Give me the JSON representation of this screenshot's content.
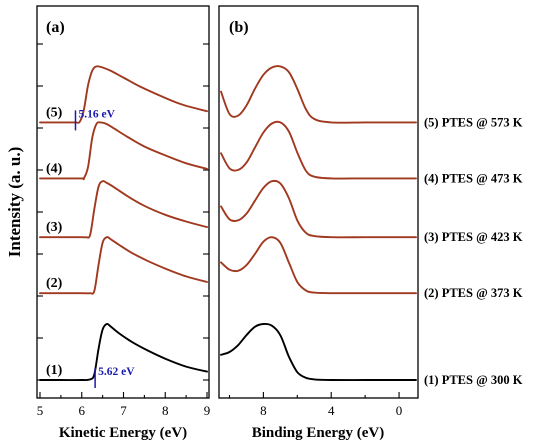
{
  "chart_data": [
    {
      "type": "line",
      "panel": "(a)",
      "xlabel": "Kinetic Energy (eV)",
      "ylabel": "Intensity (a. u.)",
      "xlim": [
        5,
        9
      ],
      "x_ticks": [
        "5",
        "6",
        "7",
        "8",
        "9"
      ],
      "series": [
        {
          "label": "(1)",
          "color": "#000000",
          "offset": 0.0,
          "x": [
            5.0,
            5.5,
            6.0,
            6.2,
            6.3,
            6.4,
            6.5,
            6.6,
            6.7,
            6.9,
            7.2,
            7.6,
            8.0,
            8.5,
            9.0
          ],
          "y": [
            0.0,
            0.0,
            0.0,
            0.01,
            0.1,
            0.55,
            0.9,
            1.0,
            0.95,
            0.83,
            0.68,
            0.52,
            0.38,
            0.24,
            0.15
          ]
        },
        {
          "label": "(2)",
          "color": "#a0391f",
          "offset": 1.55,
          "x": [
            5.0,
            5.5,
            6.0,
            6.2,
            6.3,
            6.4,
            6.5,
            6.6,
            6.7,
            6.9,
            7.2,
            7.6,
            8.0,
            8.5,
            9.0
          ],
          "y": [
            0.0,
            0.0,
            0.0,
            0.0,
            0.04,
            0.5,
            0.9,
            1.0,
            0.96,
            0.86,
            0.72,
            0.57,
            0.44,
            0.3,
            0.2
          ]
        },
        {
          "label": "(3)",
          "color": "#a0391f",
          "offset": 2.55,
          "x": [
            5.0,
            5.5,
            6.0,
            6.1,
            6.2,
            6.3,
            6.4,
            6.5,
            6.6,
            6.8,
            7.1,
            7.5,
            8.0,
            8.5,
            9.0
          ],
          "y": [
            0.0,
            0.0,
            0.0,
            0.0,
            0.04,
            0.5,
            0.9,
            1.0,
            0.97,
            0.88,
            0.73,
            0.56,
            0.4,
            0.28,
            0.18
          ]
        },
        {
          "label": "(4)",
          "color": "#a0391f",
          "offset": 3.6,
          "x": [
            5.0,
            5.5,
            6.0,
            6.05,
            6.15,
            6.25,
            6.35,
            6.45,
            6.6,
            6.8,
            7.1,
            7.5,
            8.0,
            8.5,
            9.0
          ],
          "y": [
            0.0,
            0.0,
            0.0,
            0.0,
            0.2,
            0.72,
            0.97,
            1.0,
            0.97,
            0.88,
            0.74,
            0.57,
            0.41,
            0.27,
            0.17
          ]
        },
        {
          "label": "(5)",
          "color": "#a0391f",
          "offset": 4.6,
          "x": [
            5.0,
            5.5,
            5.85,
            5.95,
            6.05,
            6.15,
            6.25,
            6.35,
            6.5,
            6.7,
            7.0,
            7.4,
            7.9,
            8.4,
            9.0
          ],
          "y": [
            0.0,
            0.0,
            0.0,
            0.01,
            0.22,
            0.66,
            0.92,
            1.0,
            0.98,
            0.92,
            0.8,
            0.64,
            0.47,
            0.32,
            0.2
          ]
        }
      ],
      "annotations": [
        {
          "text": "5.16 eV",
          "x": 5.85,
          "series": "(5)"
        },
        {
          "text": "5.62 eV",
          "x": 6.32,
          "series": "(1)"
        }
      ]
    },
    {
      "type": "line",
      "panel": "(b)",
      "xlabel": "Binding Energy (eV)",
      "xlim": [
        10.5,
        -1.0
      ],
      "x_ticks": [
        "8",
        "4",
        "0"
      ],
      "series": [
        {
          "label": "(1) PTES @ 300 K",
          "color": "#000000",
          "offset": 0.0,
          "x": [
            10.5,
            10.0,
            9.5,
            9.0,
            8.5,
            8.0,
            7.5,
            7.0,
            6.5,
            6.0,
            5.5,
            5.0,
            4.0,
            2.0,
            0.0,
            -1.0
          ],
          "y": [
            0.45,
            0.5,
            0.62,
            0.8,
            0.95,
            1.0,
            0.97,
            0.8,
            0.42,
            0.14,
            0.04,
            0.01,
            0.0,
            0.0,
            0.0,
            0.0
          ]
        },
        {
          "label": "(2) PTES @ 373 K",
          "color": "#a0391f",
          "offset": 1.55,
          "x": [
            10.5,
            10.0,
            9.5,
            9.0,
            8.5,
            8.0,
            7.5,
            7.0,
            6.5,
            6.0,
            5.5,
            5.0,
            4.0,
            2.0,
            0.0,
            -1.0
          ],
          "y": [
            0.55,
            0.42,
            0.4,
            0.5,
            0.7,
            0.92,
            1.0,
            0.9,
            0.55,
            0.2,
            0.05,
            0.01,
            0.0,
            0.0,
            0.0,
            0.0
          ]
        },
        {
          "label": "(3) PTES @ 423 K",
          "color": "#a0391f",
          "offset": 2.55,
          "x": [
            10.5,
            10.0,
            9.5,
            9.0,
            8.5,
            8.0,
            7.5,
            7.0,
            6.5,
            6.0,
            5.5,
            5.0,
            4.0,
            2.0,
            0.0,
            -1.0
          ],
          "y": [
            0.55,
            0.32,
            0.3,
            0.42,
            0.65,
            0.88,
            1.0,
            0.96,
            0.7,
            0.3,
            0.08,
            0.02,
            0.0,
            0.0,
            0.0,
            0.0
          ]
        },
        {
          "label": "(4) PTES @ 473 K",
          "color": "#a0391f",
          "offset": 3.6,
          "x": [
            10.5,
            10.0,
            9.5,
            9.0,
            8.5,
            8.0,
            7.5,
            7.0,
            6.5,
            6.0,
            5.5,
            5.0,
            4.0,
            2.0,
            0.0,
            -1.0
          ],
          "y": [
            0.45,
            0.18,
            0.15,
            0.28,
            0.55,
            0.82,
            0.98,
            1.0,
            0.84,
            0.46,
            0.14,
            0.03,
            0.0,
            0.0,
            0.0,
            0.0
          ]
        },
        {
          "label": "(5) PTES @ 573 K",
          "color": "#a0391f",
          "offset": 4.6,
          "x": [
            10.5,
            10.0,
            9.5,
            9.0,
            8.5,
            8.0,
            7.5,
            7.0,
            6.5,
            6.0,
            5.5,
            5.0,
            4.0,
            2.0,
            0.0,
            -1.0
          ],
          "y": [
            0.55,
            0.15,
            0.12,
            0.3,
            0.6,
            0.85,
            0.98,
            1.0,
            0.9,
            0.6,
            0.24,
            0.06,
            0.0,
            0.0,
            0.0,
            0.0
          ]
        }
      ]
    }
  ]
}
